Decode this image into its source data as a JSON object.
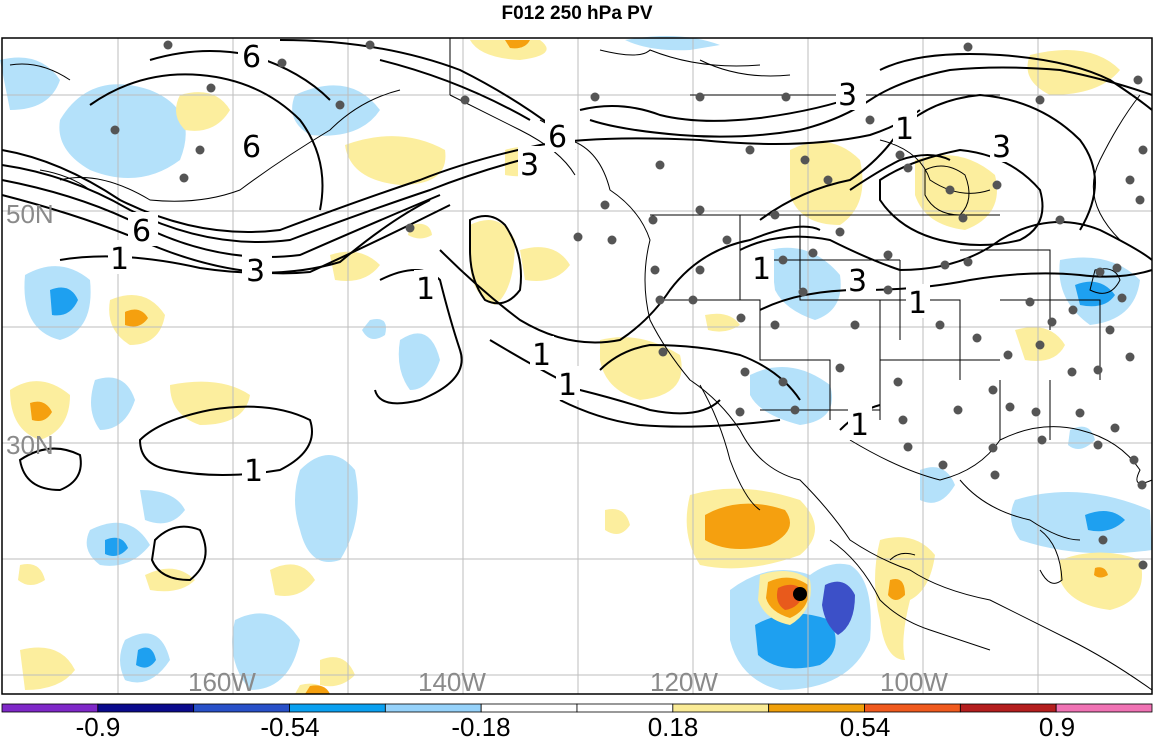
{
  "title": "F012 250 hPa PV",
  "map": {
    "lat_labels": [
      "50N",
      "30N"
    ],
    "lon_labels": [
      "160W",
      "140W",
      "120W",
      "100W"
    ],
    "contour_labels": [
      "6",
      "6",
      "6",
      "6",
      "3",
      "3",
      "3",
      "3",
      "3",
      "1",
      "1",
      "1",
      "1",
      "1",
      "1",
      "1",
      "1"
    ]
  },
  "colorbar": {
    "tick_labels": [
      "-0.9",
      "-0.54",
      "-0.18",
      "0.18",
      "0.54",
      "0.9"
    ],
    "colors": [
      "#7f28c8",
      "#0a0a8c",
      "#2850c8",
      "#0aa0f0",
      "#96d2fa",
      "#ffffff",
      "#ffffff",
      "#faeb96",
      "#f0a00a",
      "#f05a1e",
      "#b41e1e",
      "#f073b4"
    ]
  },
  "legend_shading": {
    "neg_light": "#b4e1fa",
    "neg_mid": "#1ea0f0",
    "neg_dark": "#3c50c8",
    "pos_light": "#fcee9e",
    "pos_mid": "#f5a00f",
    "pos_dark": "#e85a1c"
  }
}
